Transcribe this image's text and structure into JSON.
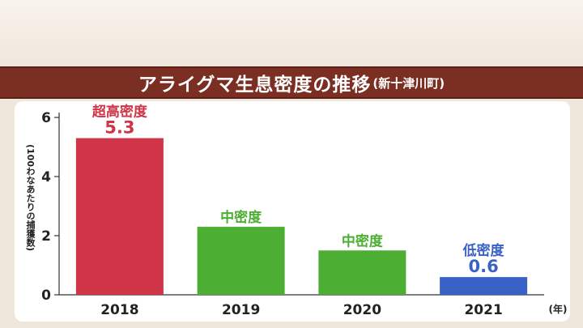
{
  "title": {
    "main": "アライグマ生息密度の推移",
    "sub": "(新十津川町)"
  },
  "chart_data": {
    "type": "bar",
    "categories": [
      "2018",
      "2019",
      "2020",
      "2021"
    ],
    "values": [
      5.3,
      2.3,
      1.5,
      0.6
    ],
    "colors": [
      "#cf3447",
      "#4caf33",
      "#4caf33",
      "#3a62c6"
    ],
    "category_labels": [
      "超高密度",
      "中密度",
      "中密度",
      "低密度"
    ],
    "value_labels": [
      "5.3",
      "",
      "",
      "0.6"
    ],
    "ylabel": "(100わなあたりの捕獲数)",
    "xunit": "(年)",
    "ylim": [
      0,
      6
    ],
    "yticks": [
      0,
      2,
      4,
      6
    ],
    "grid": false
  }
}
